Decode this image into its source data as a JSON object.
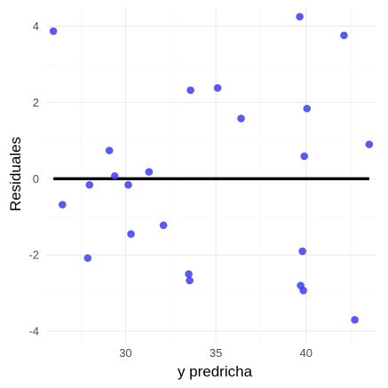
{
  "chart_data": {
    "type": "scatter",
    "title": "",
    "xlabel": "y predricha",
    "ylabel": "Residuales",
    "xlim": [
      25.6,
      43.9
    ],
    "ylim": [
      -4.3,
      4.5
    ],
    "x_ticks": [
      30,
      35,
      40
    ],
    "y_ticks": [
      -4,
      -2,
      0,
      2,
      4
    ],
    "grid": true,
    "legend": "none",
    "point_color": "#3d3df0",
    "reference_line": {
      "y": 0,
      "x_from": 26.0,
      "x_to": 43.5,
      "color": "#000000"
    },
    "points": [
      {
        "x": 26.0,
        "y": 3.87
      },
      {
        "x": 26.5,
        "y": -0.68
      },
      {
        "x": 27.9,
        "y": -2.08
      },
      {
        "x": 28.0,
        "y": -0.16
      },
      {
        "x": 29.1,
        "y": 0.74
      },
      {
        "x": 29.4,
        "y": 0.07
      },
      {
        "x": 30.15,
        "y": -0.16
      },
      {
        "x": 30.3,
        "y": -1.45
      },
      {
        "x": 31.3,
        "y": 0.18
      },
      {
        "x": 32.1,
        "y": -1.22
      },
      {
        "x": 33.5,
        "y": -2.5
      },
      {
        "x": 33.55,
        "y": -2.67
      },
      {
        "x": 33.6,
        "y": 2.32
      },
      {
        "x": 35.1,
        "y": 2.38
      },
      {
        "x": 36.4,
        "y": 1.58
      },
      {
        "x": 39.65,
        "y": 4.25
      },
      {
        "x": 39.7,
        "y": -2.8
      },
      {
        "x": 39.8,
        "y": -1.9
      },
      {
        "x": 39.85,
        "y": -2.93
      },
      {
        "x": 39.9,
        "y": 0.59
      },
      {
        "x": 40.05,
        "y": 1.84
      },
      {
        "x": 42.1,
        "y": 3.76
      },
      {
        "x": 42.7,
        "y": -3.7
      },
      {
        "x": 43.5,
        "y": 0.9
      }
    ]
  }
}
